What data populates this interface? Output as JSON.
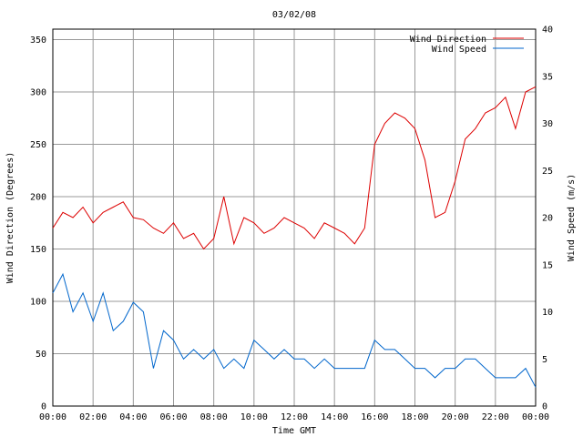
{
  "chart_data": {
    "type": "line",
    "title": "03/02/08",
    "xlabel": "Time GMT",
    "ylabel_left": "Wind Direction (Degrees)",
    "ylabel_right": "Wind Speed (m/s)",
    "x_ticks": [
      "00:00",
      "02:00",
      "04:00",
      "06:00",
      "08:00",
      "10:00",
      "12:00",
      "14:00",
      "16:00",
      "18:00",
      "20:00",
      "22:00",
      "00:00"
    ],
    "x_range_hours": [
      0,
      24
    ],
    "y_left_ticks": [
      "0",
      "50",
      "100",
      "150",
      "200",
      "250",
      "300",
      "350"
    ],
    "y_left_range": [
      0,
      360
    ],
    "y_right_ticks": [
      "0",
      "5",
      "10",
      "15",
      "20",
      "25",
      "30",
      "35",
      "40"
    ],
    "y_right_range": [
      0,
      40
    ],
    "grid": true,
    "legend_position": "top-right",
    "legend": [
      "Wind Direction",
      "Wind Speed"
    ],
    "colors": {
      "direction": "#dd0000",
      "speed": "#0066cc",
      "grid": "#999999"
    },
    "series": [
      {
        "name": "Wind Direction",
        "axis": "left",
        "x_hours": [
          0,
          0.5,
          1,
          1.5,
          2,
          2.5,
          3,
          3.5,
          4,
          4.5,
          5,
          5.5,
          6,
          6.5,
          7,
          7.5,
          8,
          8.5,
          9,
          9.5,
          10,
          10.5,
          11,
          11.5,
          12,
          12.5,
          13,
          13.5,
          14,
          14.5,
          15,
          15.5,
          16,
          16.5,
          17,
          17.5,
          18,
          18.5,
          19,
          19.5,
          20,
          20.5,
          21,
          21.5,
          22,
          22.5,
          23,
          23.5,
          24
        ],
        "values": [
          170,
          185,
          180,
          190,
          175,
          185,
          190,
          195,
          180,
          178,
          170,
          165,
          175,
          160,
          165,
          150,
          160,
          200,
          155,
          180,
          175,
          165,
          170,
          180,
          175,
          170,
          160,
          175,
          170,
          165,
          155,
          170,
          250,
          270,
          280,
          275,
          265,
          235,
          180,
          185,
          215,
          255,
          265,
          280,
          285,
          295,
          265,
          300,
          305
        ]
      },
      {
        "name": "Wind Speed",
        "axis": "right",
        "x_hours": [
          0,
          0.5,
          1,
          1.5,
          2,
          2.5,
          3,
          3.5,
          4,
          4.5,
          5,
          5.5,
          6,
          6.5,
          7,
          7.5,
          8,
          8.5,
          9,
          9.5,
          10,
          10.5,
          11,
          11.5,
          12,
          12.5,
          13,
          13.5,
          14,
          14.5,
          15,
          15.5,
          16,
          16.5,
          17,
          17.5,
          18,
          18.5,
          19,
          19.5,
          20,
          20.5,
          21,
          21.5,
          22,
          22.5,
          23,
          23.5,
          24
        ],
        "values": [
          12,
          14,
          10,
          12,
          9,
          12,
          8,
          9,
          11,
          10,
          4,
          8,
          7,
          5,
          6,
          5,
          6,
          4,
          5,
          4,
          7,
          6,
          5,
          6,
          5,
          5,
          4,
          5,
          4,
          4,
          4,
          4,
          7,
          6,
          6,
          5,
          4,
          4,
          3,
          4,
          4,
          5,
          5,
          4,
          3,
          3,
          3,
          4,
          2
        ]
      }
    ]
  }
}
